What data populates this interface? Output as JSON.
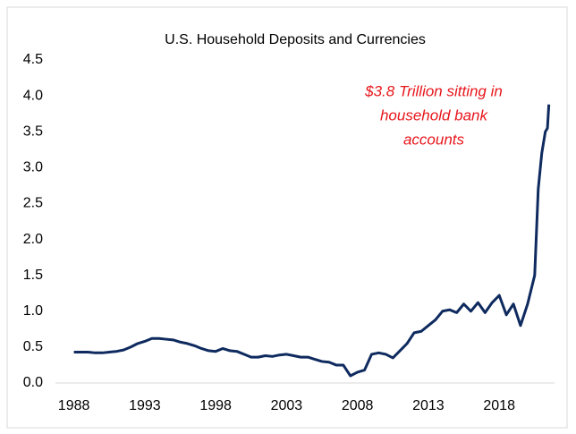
{
  "chart_data": {
    "type": "line",
    "title": "U.S. Household Deposits and Currencies",
    "annotation": [
      "$3.8 Trillion sitting in",
      "household bank",
      "accounts"
    ],
    "x": [
      1988,
      1988.5,
      1989,
      1989.5,
      1990,
      1990.5,
      1991,
      1991.5,
      1992,
      1992.5,
      1993,
      1993.5,
      1994,
      1994.5,
      1995,
      1995.5,
      1996,
      1996.5,
      1997,
      1997.5,
      1998,
      1998.5,
      1999,
      1999.5,
      2000,
      2000.5,
      2001,
      2001.5,
      2002,
      2002.5,
      2003,
      2003.5,
      2004,
      2004.5,
      2005,
      2005.5,
      2006,
      2006.5,
      2007,
      2007.5,
      2008,
      2008.5,
      2009,
      2009.5,
      2010,
      2010.5,
      2011,
      2011.5,
      2012,
      2012.5,
      2013,
      2013.5,
      2014,
      2014.5,
      2015,
      2015.5,
      2016,
      2016.5,
      2017,
      2017.5,
      2018,
      2018.5,
      2019,
      2019.5,
      2020,
      2020.5,
      2020.75,
      2021,
      2021.25,
      2021.4,
      2021.5
    ],
    "series": [
      {
        "name": "U.S. Household Deposits and Currencies",
        "color": "#0e2a5e",
        "values": [
          0.43,
          0.43,
          0.43,
          0.42,
          0.42,
          0.43,
          0.44,
          0.46,
          0.5,
          0.55,
          0.58,
          0.62,
          0.62,
          0.61,
          0.6,
          0.57,
          0.55,
          0.52,
          0.48,
          0.45,
          0.44,
          0.48,
          0.45,
          0.44,
          0.4,
          0.36,
          0.36,
          0.38,
          0.37,
          0.39,
          0.4,
          0.38,
          0.36,
          0.36,
          0.33,
          0.3,
          0.29,
          0.25,
          0.25,
          0.1,
          0.15,
          0.18,
          0.4,
          0.42,
          0.4,
          0.35,
          0.45,
          0.55,
          0.7,
          0.72,
          0.8,
          0.88,
          1.0,
          1.02,
          0.98,
          1.1,
          1.0,
          1.12,
          0.98,
          1.12,
          1.22,
          0.95,
          1.1,
          0.8,
          1.1,
          1.5,
          2.7,
          3.2,
          3.5,
          3.55,
          3.88
        ]
      }
    ],
    "xlim": [
      1986.7,
      2021.9
    ],
    "xticks": [
      1988,
      1993,
      1998,
      2003,
      2008,
      2013,
      2018
    ],
    "ylim": [
      0,
      4.5
    ],
    "yticks": [
      {
        "value": 0,
        "label": "0.0"
      },
      0.5,
      {
        "value": 1,
        "label": "1.0"
      },
      1.5,
      {
        "value": 2,
        "label": "2.0"
      },
      2.5,
      {
        "value": 3,
        "label": "3.0"
      },
      3.5,
      {
        "value": 4,
        "label": "4.0"
      },
      4.5
    ],
    "grid": false
  }
}
